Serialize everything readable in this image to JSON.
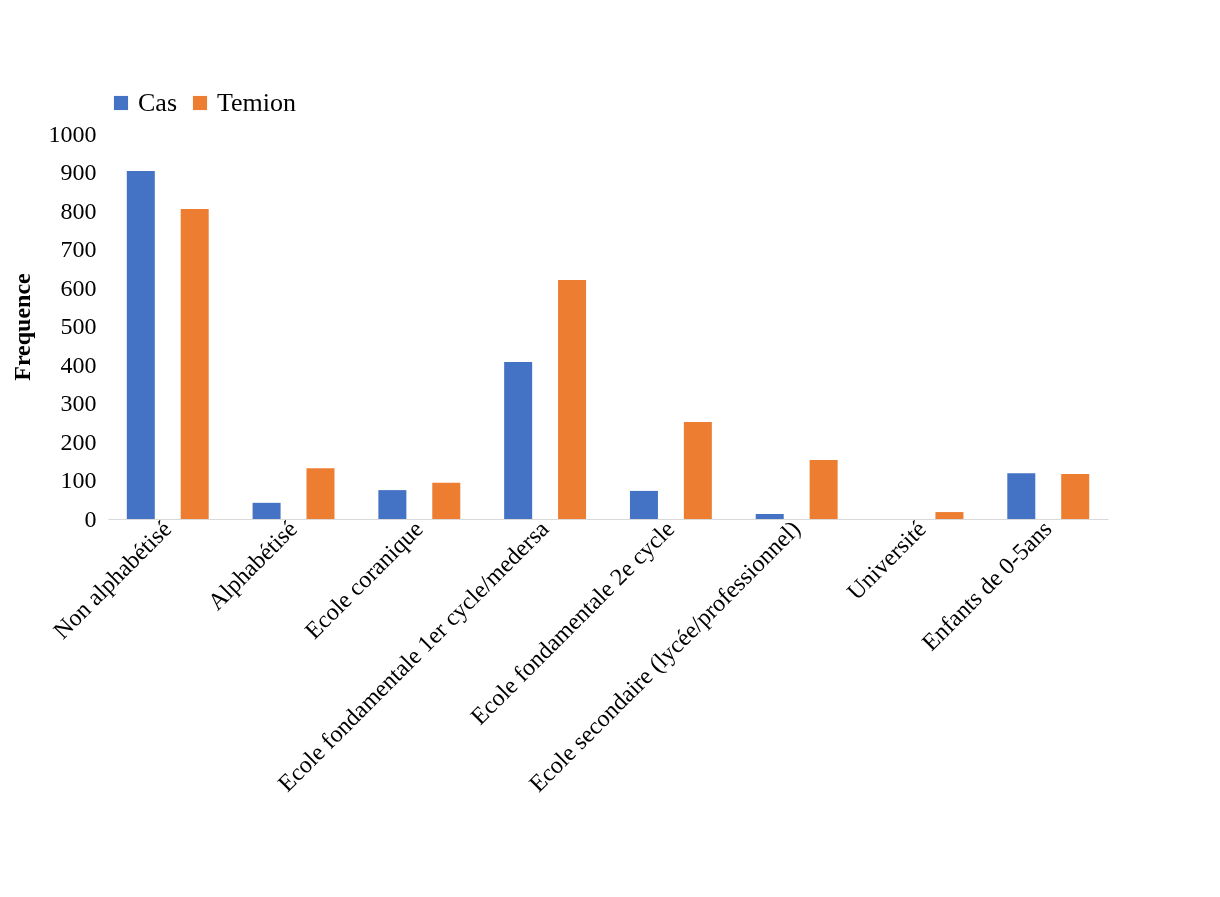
{
  "chart_data": {
    "type": "bar",
    "ylabel": "Frequence",
    "categories": [
      "Non alphabétisé",
      "Alphabétisé",
      "Ecole coranique",
      "Ecole fondamentale 1er cycle/medersa",
      "Ecole fondamentale 2e cycle",
      "Ecole secondaire (lycée/professionnel)",
      "Université",
      "Enfants de 0-5ans"
    ],
    "series": [
      {
        "name": "Cas",
        "color": "#4472c4",
        "values": [
          904,
          42,
          75,
          408,
          73,
          13,
          null,
          119
        ]
      },
      {
        "name": "Temion",
        "color": "#ed7d31",
        "values": [
          805,
          132,
          94,
          621,
          252,
          153,
          18,
          117
        ]
      }
    ],
    "ylim": [
      0,
      1000
    ],
    "yticks": [
      0,
      100,
      200,
      300,
      400,
      500,
      600,
      700,
      800,
      900,
      {
        "value": 1000,
        "label": "1000"
      }
    ],
    "grid": false,
    "legend": "top"
  }
}
